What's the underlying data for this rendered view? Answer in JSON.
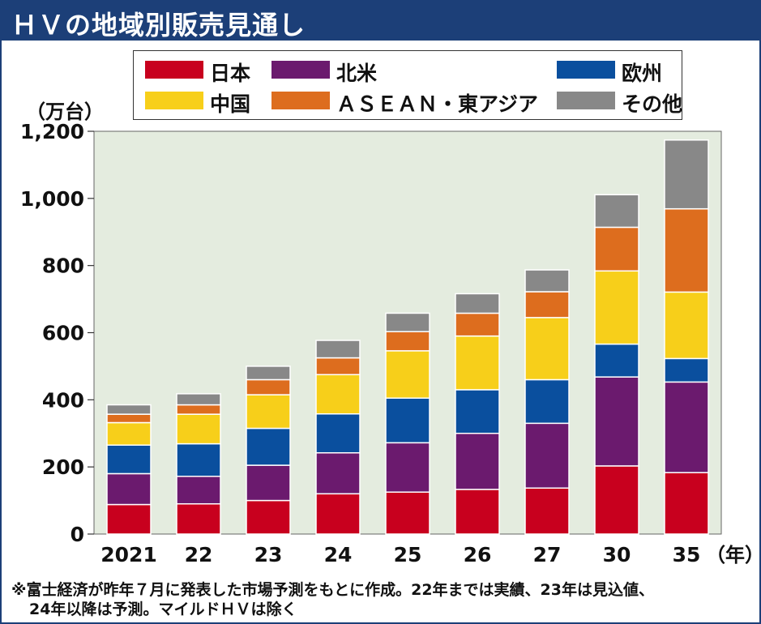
{
  "title": "ＨＶの地域別販売見通し",
  "unit": "（万台）",
  "year_unit": "（年）",
  "footnote_line1": "※富士経済が昨年７月に発表した市場予測をもとに作成。22年までは実績、23年は見込値、",
  "footnote_line2": "24年以降は予測。マイルドＨＶは除く",
  "legend": [
    {
      "name": "日本",
      "color": "#c8001e"
    },
    {
      "name": "北米",
      "color": "#6b1a6e"
    },
    {
      "name": "欧州",
      "color": "#0a4f9e"
    },
    {
      "name": "中国",
      "color": "#f7cf1a"
    },
    {
      "name": "ＡＳＥＡＮ・東アジア",
      "color": "#dd6d1e"
    },
    {
      "name": "その他",
      "color": "#888888"
    }
  ],
  "chart_data": {
    "type": "bar",
    "stacked": true,
    "categories": [
      "2021",
      "22",
      "23",
      "24",
      "25",
      "26",
      "27",
      "30",
      "35"
    ],
    "ylim": [
      0,
      1200
    ],
    "yticks": [
      0,
      200,
      400,
      600,
      800,
      1000,
      1200
    ],
    "ytick_labels": [
      "0",
      "200",
      "400",
      "600",
      "800",
      "1,000",
      "1,200"
    ],
    "ylabel": "（万台）",
    "xlabel": "（年）",
    "grid": false,
    "background": "#e4ecdf",
    "series": [
      {
        "name": "日本",
        "color": "#c8001e",
        "values": [
          88,
          90,
          100,
          120,
          125,
          133,
          137,
          203,
          183
        ]
      },
      {
        "name": "北米",
        "color": "#6b1a6e",
        "values": [
          92,
          82,
          105,
          122,
          147,
          167,
          193,
          265,
          270
        ]
      },
      {
        "name": "欧州",
        "color": "#0a4f9e",
        "values": [
          85,
          97,
          110,
          116,
          133,
          130,
          130,
          98,
          70
        ]
      },
      {
        "name": "中国",
        "color": "#f7cf1a",
        "values": [
          67,
          88,
          100,
          117,
          141,
          160,
          185,
          218,
          198
        ]
      },
      {
        "name": "ＡＳＥＡＮ・東アジア",
        "color": "#dd6d1e",
        "values": [
          25,
          28,
          45,
          50,
          57,
          68,
          77,
          130,
          248
        ]
      },
      {
        "name": "その他",
        "color": "#888888",
        "values": [
          28,
          33,
          40,
          52,
          55,
          58,
          65,
          97,
          205
        ]
      }
    ]
  }
}
